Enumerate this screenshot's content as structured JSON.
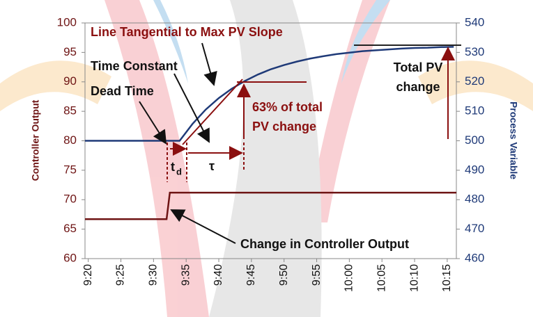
{
  "chart_data": {
    "type": "line",
    "y_label": "Controller Output",
    "y2_label": "Process Variable",
    "xlim": [
      559.5,
      616.4
    ],
    "xticks": [
      {
        "value": 560,
        "label": "9:20"
      },
      {
        "value": 565,
        "label": "9:25"
      },
      {
        "value": 570,
        "label": "9:30"
      },
      {
        "value": 575,
        "label": "9:35"
      },
      {
        "value": 580,
        "label": "9:40"
      },
      {
        "value": 585,
        "label": "9:45"
      },
      {
        "value": 590,
        "label": "9:50"
      },
      {
        "value": 595,
        "label": "9:55"
      },
      {
        "value": 600,
        "label": "10:00"
      },
      {
        "value": 605,
        "label": "10:05"
      },
      {
        "value": 610,
        "label": "10:10"
      },
      {
        "value": 615,
        "label": "10:15"
      }
    ],
    "ylim": [
      60,
      100
    ],
    "yticks": [
      60,
      65,
      70,
      75,
      80,
      85,
      90,
      95,
      100
    ],
    "y2lim": [
      460,
      540
    ],
    "y2ticks": [
      460,
      470,
      480,
      490,
      500,
      510,
      520,
      530,
      540
    ],
    "series": [
      {
        "name": "Controller Output",
        "color": "#6e1414",
        "x": [
          559.5,
          572,
          572.5,
          616.4
        ],
        "values": [
          66.7,
          66.7,
          71.2,
          71.2
        ]
      },
      {
        "name": "Process Variable",
        "color": "#1f3a78",
        "axis": "y2",
        "x": [
          559.5,
          572,
          574,
          576,
          578,
          580,
          582,
          584,
          586,
          588,
          590,
          592,
          594,
          596,
          598,
          600,
          602,
          604,
          606,
          608,
          610,
          612,
          614,
          616
        ],
        "values": [
          500,
          500,
          500,
          505.8,
          510.6,
          514.5,
          517.7,
          520.3,
          522.5,
          524.3,
          525.7,
          526.9,
          527.9,
          528.7,
          529.4,
          529.9,
          530.4,
          530.7,
          531,
          531.3,
          531.5,
          531.6,
          531.8,
          531.9
        ]
      }
    ],
    "annotations": [
      {
        "text": [
          "Line Tangential to Max PV Slope"
        ]
      },
      {
        "text": [
          "Time Constant"
        ]
      },
      {
        "text": [
          "Dead Time"
        ]
      },
      {
        "text": [
          "63% of total",
          "PV change"
        ]
      },
      {
        "text": [
          "Total PV",
          "change"
        ]
      },
      {
        "text": [
          "Change in Controller Output"
        ]
      },
      {
        "text": [
          "t",
          "d"
        ]
      },
      {
        "text": [
          "τ"
        ]
      }
    ]
  }
}
